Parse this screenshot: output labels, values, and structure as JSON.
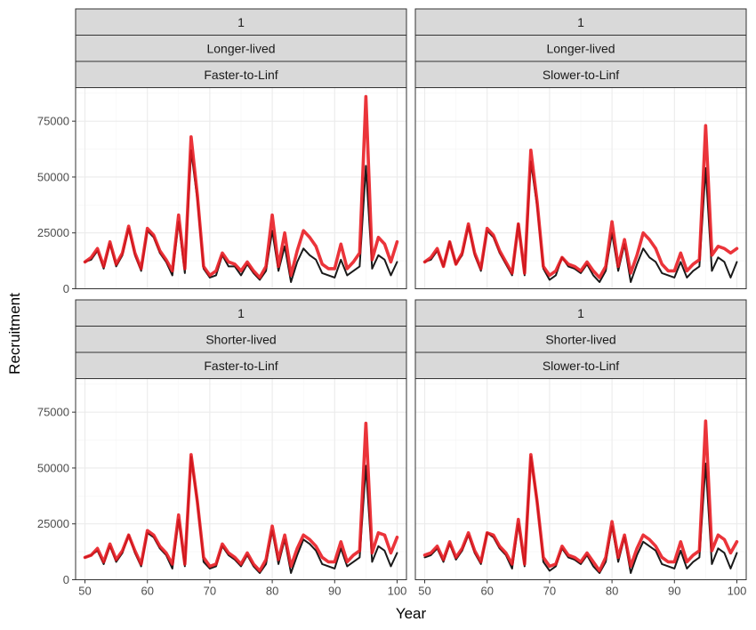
{
  "chart_data": {
    "type": "line",
    "xlabel": "Year",
    "ylabel": "Recruitment",
    "xlim": [
      48.5,
      101.5
    ],
    "ylim": [
      0,
      90000
    ],
    "x_ticks": [
      50,
      60,
      70,
      80,
      90,
      100
    ],
    "x_tick_labels": [
      "50",
      "60",
      "70",
      "80",
      "90",
      "100"
    ],
    "y_ticks": [
      0,
      25000,
      50000,
      75000
    ],
    "y_tick_labels": [
      "0",
      "25000",
      "50000",
      "75000"
    ],
    "grid": true,
    "x": [
      50,
      51,
      52,
      53,
      54,
      55,
      56,
      57,
      58,
      59,
      60,
      61,
      62,
      63,
      64,
      65,
      66,
      67,
      68,
      69,
      70,
      71,
      72,
      73,
      74,
      75,
      76,
      77,
      78,
      79,
      80,
      81,
      82,
      83,
      84,
      85,
      86,
      87,
      88,
      89,
      90,
      91,
      92,
      93,
      94,
      95,
      96,
      97,
      98,
      99,
      100
    ],
    "series_colors": [
      "#1a1a1a",
      "#e8181f"
    ],
    "panels": [
      {
        "strips": [
          "1",
          "Longer-lived",
          "Faster-to-Linf"
        ],
        "series": [
          {
            "values": [
              12000,
              13000,
              17000,
              9000,
              20000,
              10000,
              15000,
              27000,
              15000,
              8000,
              26000,
              23000,
              16000,
              12000,
              6000,
              30000,
              7000,
              62000,
              40000,
              9000,
              5000,
              6000,
              15000,
              10000,
              10000,
              6000,
              11000,
              7000,
              4000,
              8000,
              26000,
              8000,
              19000,
              3000,
              12000,
              18000,
              15000,
              13000,
              7000,
              6000,
              5000,
              13000,
              6000,
              8000,
              10000,
              55000,
              9000,
              15000,
              13000,
              6000,
              12000
            ]
          },
          {
            "values": [
              12000,
              14000,
              18000,
              10000,
              21000,
              11000,
              16000,
              28000,
              16000,
              9000,
              27000,
              24000,
              17000,
              13000,
              8000,
              33000,
              9000,
              68000,
              42000,
              10000,
              6000,
              8000,
              16000,
              12000,
              11000,
              8000,
              12000,
              8000,
              5000,
              10000,
              33000,
              10000,
              25000,
              6000,
              17000,
              26000,
              23000,
              19000,
              11000,
              9000,
              9000,
              20000,
              9000,
              12000,
              16000,
              86000,
              13000,
              23000,
              20000,
              12000,
              21000
            ]
          }
        ]
      },
      {
        "strips": [
          "1",
          "Longer-lived",
          "Slower-to-Linf"
        ],
        "series": [
          {
            "values": [
              12000,
              13000,
              17000,
              10000,
              21000,
              11000,
              15000,
              28000,
              15000,
              8000,
              26000,
              23000,
              16000,
              11000,
              6000,
              29000,
              6000,
              57000,
              37000,
              9000,
              4000,
              6000,
              14000,
              10000,
              9000,
              7000,
              11000,
              6000,
              3000,
              8000,
              25000,
              8000,
              20000,
              3000,
              11000,
              18000,
              14000,
              12000,
              7000,
              6000,
              5000,
              12000,
              5000,
              8000,
              10000,
              54000,
              8000,
              14000,
              12000,
              5000,
              12000
            ]
          },
          {
            "values": [
              12000,
              14000,
              18000,
              10000,
              21000,
              11000,
              16000,
              29000,
              16000,
              9000,
              27000,
              24000,
              17000,
              12000,
              7000,
              29000,
              7000,
              62000,
              39000,
              10000,
              6000,
              8000,
              14000,
              11000,
              10000,
              8000,
              12000,
              8000,
              5000,
              10000,
              30000,
              10000,
              22000,
              7000,
              15000,
              25000,
              22000,
              18000,
              11000,
              8000,
              8000,
              16000,
              8000,
              11000,
              13000,
              73000,
              15000,
              19000,
              18000,
              16000,
              18000
            ]
          }
        ]
      },
      {
        "strips": [
          "1",
          "Shorter-lived",
          "Faster-to-Linf"
        ],
        "series": [
          {
            "values": [
              10000,
              11000,
              13000,
              7000,
              15000,
              8000,
              12000,
              20000,
              12000,
              6000,
              21000,
              19000,
              14000,
              11000,
              5000,
              27000,
              6000,
              55000,
              35000,
              8000,
              5000,
              6000,
              15000,
              11000,
              9000,
              6000,
              11000,
              6000,
              3000,
              7000,
              22000,
              7000,
              18000,
              3000,
              11000,
              18000,
              16000,
              13000,
              7000,
              6000,
              5000,
              14000,
              6000,
              8000,
              10000,
              51000,
              8000,
              15000,
              13000,
              6000,
              12000
            ]
          },
          {
            "values": [
              10000,
              11000,
              14000,
              8000,
              16000,
              9000,
              13000,
              20000,
              13000,
              7000,
              22000,
              20000,
              15000,
              12000,
              7000,
              29000,
              7000,
              56000,
              35000,
              10000,
              6000,
              7000,
              16000,
              12000,
              10000,
              7000,
              12000,
              7000,
              4000,
              9000,
              24000,
              9000,
              20000,
              6000,
              14000,
              20000,
              18000,
              15000,
              10000,
              8000,
              8000,
              17000,
              8000,
              11000,
              13000,
              70000,
              12000,
              21000,
              20000,
              12000,
              19000
            ]
          }
        ]
      },
      {
        "strips": [
          "1",
          "Shorter-lived",
          "Slower-to-Linf"
        ],
        "series": [
          {
            "values": [
              10000,
              11000,
              14000,
              8000,
              16000,
              9000,
              13000,
              20000,
              12000,
              7000,
              21000,
              19000,
              14000,
              11000,
              5000,
              25000,
              6000,
              55000,
              35000,
              8000,
              4000,
              6000,
              14000,
              10000,
              9000,
              7000,
              11000,
              6000,
              3000,
              8000,
              24000,
              8000,
              19000,
              3000,
              11000,
              17000,
              15000,
              13000,
              7000,
              6000,
              5000,
              13000,
              5000,
              8000,
              10000,
              52000,
              7000,
              14000,
              12000,
              5000,
              12000
            ]
          },
          {
            "values": [
              11000,
              12000,
              15000,
              9000,
              17000,
              10000,
              14000,
              21000,
              13000,
              8000,
              21000,
              20000,
              15000,
              12000,
              7000,
              27000,
              7000,
              56000,
              35000,
              10000,
              6000,
              7000,
              15000,
              11000,
              10000,
              8000,
              12000,
              8000,
              4000,
              10000,
              26000,
              10000,
              20000,
              6000,
              14000,
              20000,
              18000,
              15000,
              10000,
              8000,
              8000,
              17000,
              8000,
              11000,
              13000,
              71000,
              13000,
              20000,
              18000,
              12000,
              17000
            ]
          }
        ]
      }
    ]
  }
}
